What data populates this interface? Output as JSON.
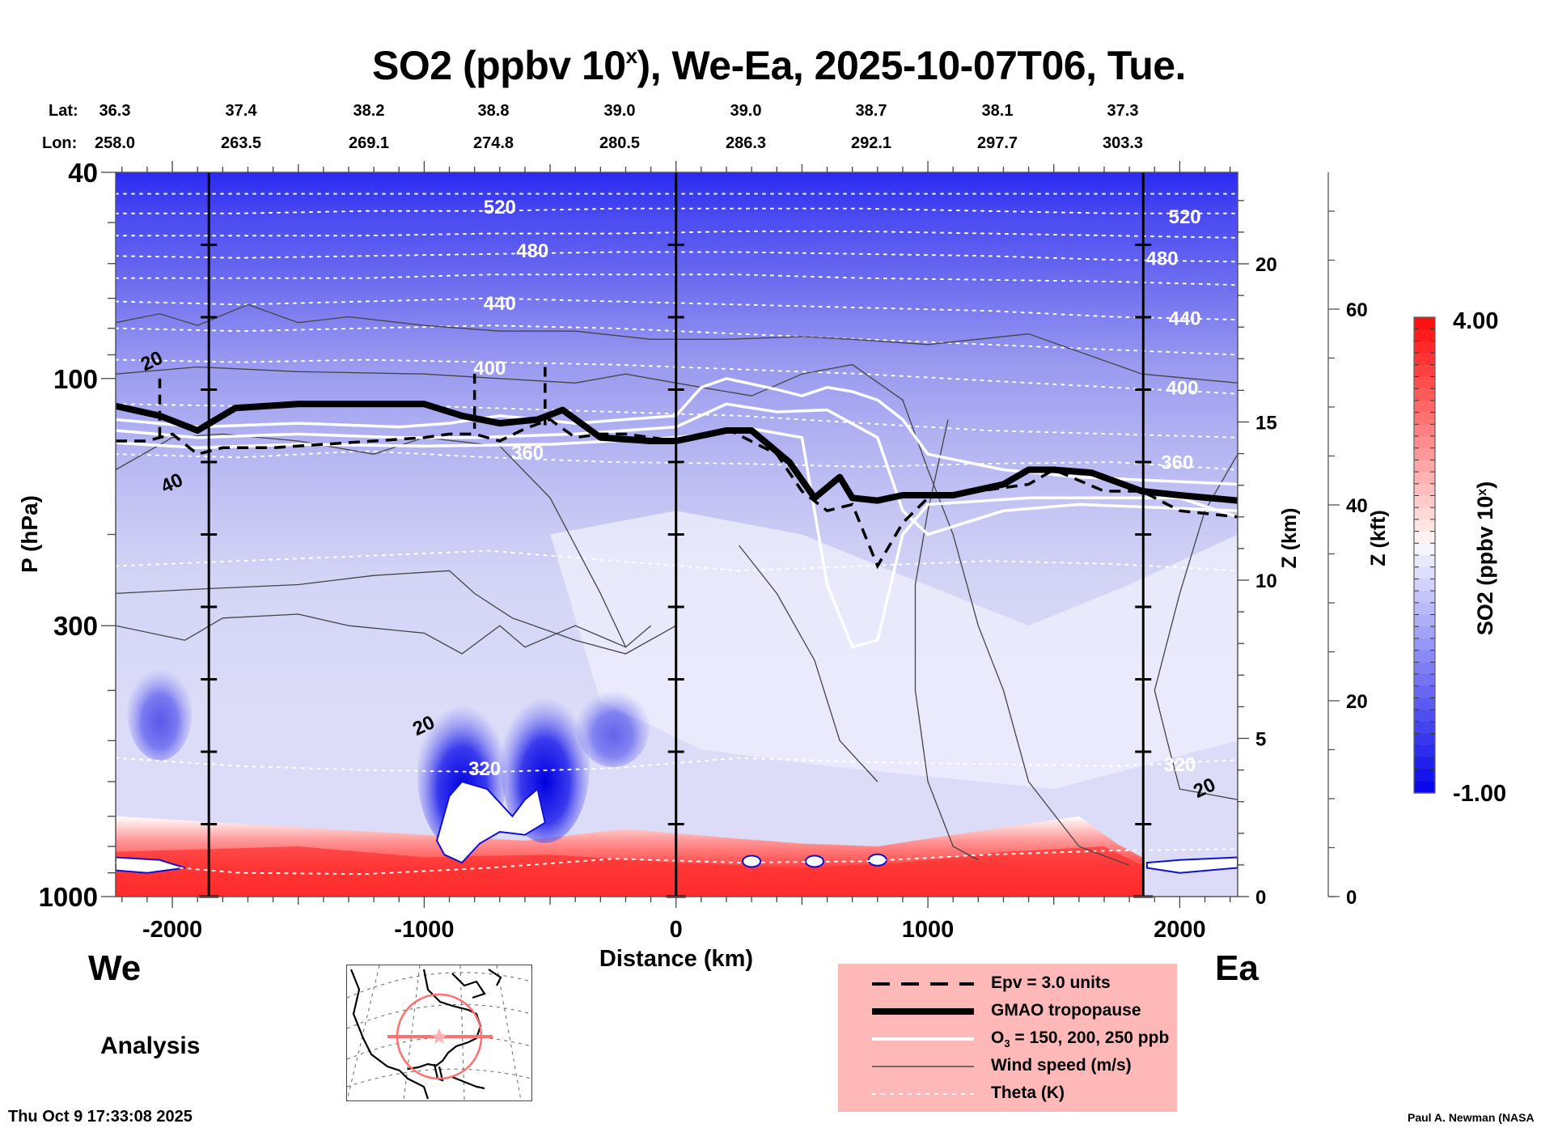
{
  "title": {
    "main": "SO2 (ppbv 10",
    "sup": "x",
    "rest": "), We-Ea, 2025-10-07T06, Tue."
  },
  "lat_lon": {
    "lat_label": "Lat:",
    "lon_label": "Lon:",
    "lat": [
      "36.3",
      "37.4",
      "38.2",
      "38.8",
      "39.0",
      "39.0",
      "38.7",
      "38.1",
      "37.3"
    ],
    "lon": [
      "258.0",
      "263.5",
      "269.1",
      "274.8",
      "280.5",
      "286.3",
      "292.1",
      "297.7",
      "303.3"
    ]
  },
  "labels": {
    "west": "We",
    "east": "Ea",
    "analysis": "Analysis",
    "timestamp": "Thu Oct  9 17:33:08 2025",
    "credit": "Paul A. Newman (NASA"
  },
  "legend": {
    "items": [
      {
        "style": "dashed",
        "label": "Epv = 3.0 units"
      },
      {
        "style": "thick",
        "label": "GMAO tropopause"
      },
      {
        "style": "white",
        "label_pre": "O",
        "label_sub": "3",
        "label_post": " = 150, 200, 250 ppb"
      },
      {
        "style": "thin",
        "label": "Wind speed (m/s)"
      },
      {
        "style": "dotted",
        "label": "Theta (K)"
      }
    ]
  },
  "colors": {
    "legend_bg": "#ffb8b8",
    "cmap_low": "#0000d0",
    "cmap_mid": "#ffffff",
    "cmap_high": "#ff1010",
    "map_circle": "#ff7070"
  },
  "chart_data": {
    "type": "heatmap",
    "title": "SO2 (ppbv 10^x), We-Ea, 2025-10-07T06, Tue.",
    "xlabel": "Distance (km)",
    "ylabel": "P (hPa)",
    "y2label": "Z (km)",
    "y3label": "Z (kft)",
    "xlim": [
      -2225,
      2230
    ],
    "ylim": [
      1000,
      40
    ],
    "yscale": "log",
    "x_ticks": [
      -2000,
      -1000,
      0,
      1000,
      2000
    ],
    "x_tick_labels": [
      "-2000",
      "-1000",
      "0",
      "1000",
      "2000"
    ],
    "y_ticks": [
      40,
      100,
      300,
      1000
    ],
    "y_tick_labels": [
      "40",
      "100",
      "300",
      "1000"
    ],
    "z_km_ticks": [
      0,
      5,
      10,
      15,
      20
    ],
    "z_km_tick_labels": [
      "0",
      "5",
      "10",
      "15",
      "20"
    ],
    "z_kft_ticks": [
      0,
      20,
      40,
      60
    ],
    "z_kft_tick_labels": [
      "0",
      "20",
      "40",
      "60"
    ],
    "vertical_markers_km": [
      -1855,
      0,
      1855
    ],
    "colorbar": {
      "label": "SO2 (ppbv 10^x)",
      "min": -1.0,
      "max": 4.0,
      "min_label": "-1.00",
      "max_label": "4.00",
      "levels": 40
    },
    "theta_levels_K": [
      520,
      480,
      440,
      400,
      360,
      320
    ],
    "theta_label_positions": [
      {
        "label": "520",
        "x": -700,
        "p": 47
      },
      {
        "label": "480",
        "x": -570,
        "p": 57
      },
      {
        "label": "440",
        "x": -700,
        "p": 72
      },
      {
        "label": "400",
        "x": -740,
        "p": 96
      },
      {
        "label": "360",
        "x": -590,
        "p": 140
      },
      {
        "label": "320",
        "x": -760,
        "p": 570
      },
      {
        "label": "520",
        "x": 2020,
        "p": 49
      },
      {
        "label": "480",
        "x": 1930,
        "p": 59
      },
      {
        "label": "440",
        "x": 2020,
        "p": 77
      },
      {
        "label": "400",
        "x": 2010,
        "p": 105
      },
      {
        "label": "360",
        "x": 1990,
        "p": 146
      },
      {
        "label": "320",
        "x": 2000,
        "p": 560
      }
    ],
    "theta_lines": [
      {
        "K": 530,
        "p": [
          44,
          44,
          44,
          44,
          44,
          44,
          44,
          44,
          44,
          44
        ]
      },
      {
        "K": 520,
        "p": [
          48,
          48,
          47.5,
          47.5,
          47,
          47,
          47,
          47.5,
          48,
          48
        ]
      },
      {
        "K": 500,
        "p": [
          53,
          53,
          53,
          52.5,
          52.5,
          52,
          52,
          52.5,
          53,
          53.5
        ]
      },
      {
        "K": 480,
        "p": [
          58,
          58.5,
          58,
          57.5,
          57,
          57,
          57.5,
          58,
          59,
          59.5
        ]
      },
      {
        "K": 460,
        "p": [
          64,
          64,
          64,
          63,
          63,
          63,
          64,
          64.5,
          65,
          66
        ]
      },
      {
        "K": 440,
        "p": [
          71,
          72,
          71,
          70,
          71,
          72,
          73,
          74,
          76,
          77
        ]
      },
      {
        "K": 420,
        "p": [
          80,
          81,
          80,
          79,
          80,
          82,
          84,
          86,
          88,
          90
        ]
      },
      {
        "K": 400,
        "p": [
          92,
          93,
          92,
          93,
          94,
          96,
          98,
          101,
          104,
          107
        ]
      },
      {
        "K": 380,
        "p": [
          112,
          113,
          112,
          114,
          116,
          118,
          122,
          126,
          128,
          130
        ]
      },
      {
        "K": 360,
        "p": [
          140,
          142,
          138,
          142,
          145,
          146,
          148,
          146,
          145,
          150
        ]
      },
      {
        "K": 340,
        "p": [
          230,
          225,
          220,
          215,
          225,
          235,
          230,
          225,
          228,
          235
        ]
      },
      {
        "K": 320,
        "p": [
          540,
          560,
          570,
          575,
          565,
          540,
          550,
          555,
          560,
          545
        ]
      },
      {
        "K": 300,
        "p": [
          860,
          900,
          905,
          880,
          845,
          860,
          855,
          830,
          815,
          810
        ]
      }
    ],
    "theta_x": [
      -2225,
      -1730,
      -1235,
      -740,
      -245,
      250,
      745,
      1240,
      1735,
      2230
    ],
    "tropopause_p": {
      "x": [
        -2225,
        -2050,
        -1900,
        -1750,
        -1500,
        -1100,
        -1000,
        -850,
        -700,
        -550,
        -450,
        -300,
        -100,
        0,
        200,
        300,
        450,
        550,
        650,
        700,
        800,
        900,
        1100,
        1300,
        1400,
        1500,
        1650,
        1850,
        2000,
        2230
      ],
      "p": [
        113,
        118,
        126,
        114,
        112,
        112,
        112,
        118,
        122,
        120,
        115,
        130,
        132,
        132,
        126,
        126,
        145,
        170,
        155,
        170,
        172,
        168,
        168,
        160,
        150,
        150,
        152,
        165,
        168,
        172
      ]
    },
    "epv_p": {
      "x": [
        -2225,
        -2100,
        -2000,
        -1900,
        -1800,
        -1600,
        -1400,
        -1200,
        -1000,
        -900,
        -800,
        -700,
        -600,
        -500,
        -400,
        -300,
        -200,
        0,
        200,
        400,
        500,
        600,
        700,
        800,
        900,
        1000,
        1200,
        1400,
        1500,
        1700,
        1850,
        2000,
        2230
      ],
      "p": [
        132,
        132,
        128,
        140,
        136,
        136,
        134,
        132,
        130,
        128,
        128,
        132,
        125,
        120,
        130,
        128,
        128,
        132,
        125,
        140,
        165,
        180,
        175,
        230,
        190,
        170,
        165,
        160,
        150,
        165,
        165,
        180,
        185
      ]
    },
    "wind_contour_labels": [
      {
        "label": "20",
        "x": -2080,
        "p": 93
      },
      {
        "label": "40",
        "x": -2000,
        "p": 160
      },
      {
        "label": "20",
        "x": -1000,
        "p": 470
      },
      {
        "label": "20",
        "x": 2100,
        "p": 620
      }
    ],
    "so2_field_note": "Background -0.5 to 0.5 (light blue) in upper troposphere/stratosphere, decreasing to ~-1 near top; enhanced 2–4 near surface (red) below ~650 hPa; deep blue minima near -850 and -500 km between 400–650 hPa."
  }
}
